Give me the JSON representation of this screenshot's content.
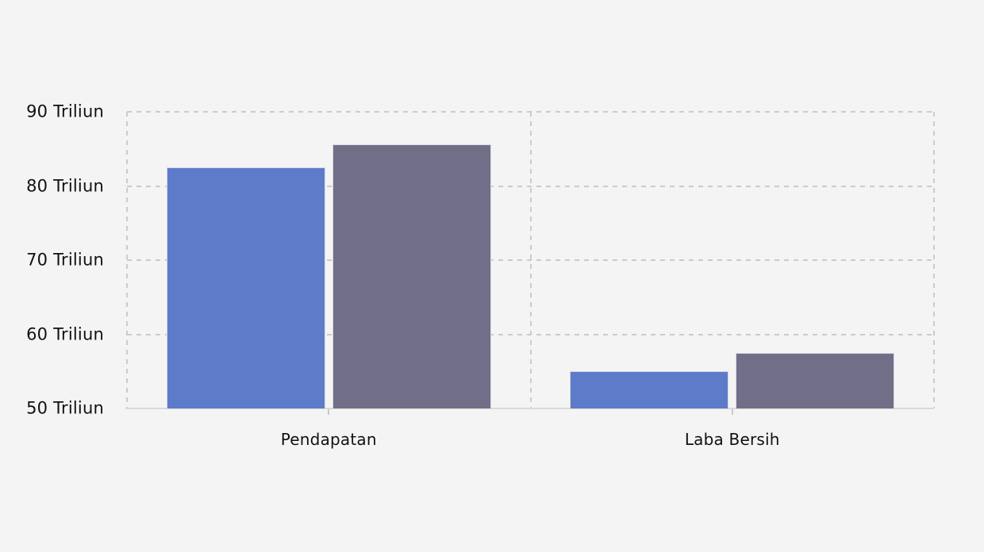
{
  "page": {
    "background": "#f4f4f5"
  },
  "chart_data": {
    "type": "bar",
    "title": "",
    "xlabel": "",
    "ylabel": "",
    "categories": [
      "Pendapatan",
      "Laba Bersih"
    ],
    "series": [
      {
        "name": "series-1",
        "color": "#5e7bc9",
        "values": [
          82.5,
          55.0
        ]
      },
      {
        "name": "series-2",
        "color": "#716f88",
        "values": [
          85.6,
          57.5
        ]
      }
    ],
    "ylim": [
      50,
      90
    ],
    "y_ticks": [
      {
        "value": 90,
        "label": "90 Triliun"
      },
      {
        "value": 80,
        "label": "80 Triliun"
      },
      {
        "value": 70,
        "label": "70 Triliun"
      },
      {
        "value": 60,
        "label": "60 Triliun"
      },
      {
        "value": 50,
        "label": "50 Triliun"
      }
    ],
    "legend": "none",
    "grid": {
      "horizontal": "dashed",
      "vertical_boundaries": "dashed"
    },
    "colors": {
      "background": "#f4f4f5",
      "grid_line": "#cbcbcd",
      "axis_line": "#d9d9d9",
      "tick": "#c9c9c9",
      "label_text": "#111111",
      "bar_border": "#d9d9e3"
    }
  }
}
